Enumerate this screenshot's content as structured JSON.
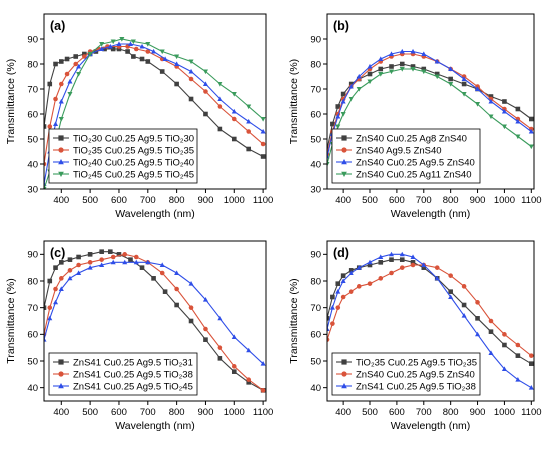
{
  "chart_data": [
    {
      "type": "line",
      "panel_label": "(a)",
      "xlabel": "Wavelength (nm)",
      "ylabel": "Transmittance (%)",
      "xlim": [
        340,
        1110
      ],
      "ylim": [
        30,
        100
      ],
      "xticks": [
        400,
        500,
        600,
        700,
        800,
        900,
        1000,
        1100
      ],
      "yticks": [
        30,
        40,
        50,
        60,
        70,
        80,
        90
      ],
      "legend_position": "bottom-left",
      "series": [
        {
          "name": "TiO₂30 Cu0.25 Ag9.5 TiO₂30",
          "color": "#404040",
          "marker": "square",
          "x": [
            340,
            360,
            380,
            400,
            420,
            450,
            480,
            500,
            520,
            550,
            580,
            600,
            630,
            650,
            680,
            700,
            750,
            800,
            850,
            900,
            950,
            1000,
            1050,
            1100
          ],
          "y": [
            55,
            72,
            80,
            81,
            82,
            83,
            84,
            84,
            85,
            86,
            86,
            86,
            85,
            83,
            82,
            81,
            77,
            72,
            66,
            60,
            54,
            50,
            46,
            43
          ]
        },
        {
          "name": "TiO₂35 Cu0.25 Ag9.5 TiO₂35",
          "color": "#d9533a",
          "marker": "circle",
          "x": [
            340,
            360,
            380,
            400,
            420,
            450,
            480,
            500,
            530,
            560,
            600,
            630,
            660,
            700,
            750,
            800,
            850,
            900,
            950,
            1000,
            1050,
            1100
          ],
          "y": [
            40,
            55,
            66,
            72,
            76,
            80,
            83,
            85,
            86,
            87,
            87,
            87,
            86,
            85,
            82,
            79,
            74,
            69,
            63,
            58,
            53,
            48
          ]
        },
        {
          "name": "TiO₂40 Cu0.25 Ag9.5 TiO₂40",
          "color": "#2f4ee8",
          "marker": "triangle-up",
          "x": [
            340,
            360,
            380,
            400,
            430,
            460,
            500,
            540,
            570,
            600,
            640,
            680,
            720,
            760,
            800,
            850,
            900,
            950,
            1000,
            1050,
            1100
          ],
          "y": [
            32,
            45,
            56,
            65,
            73,
            79,
            84,
            86,
            87,
            88,
            88,
            87,
            85,
            82,
            80,
            77,
            72,
            66,
            61,
            57,
            53
          ]
        },
        {
          "name": "TiO₂45 Cu0.25 Ag9.5 TiO₂45",
          "color": "#3a9b5c",
          "marker": "triangle-down",
          "x": [
            340,
            360,
            380,
            400,
            430,
            460,
            500,
            540,
            580,
            610,
            650,
            700,
            750,
            800,
            850,
            900,
            950,
            1000,
            1050,
            1100
          ],
          "y": [
            30,
            37,
            48,
            58,
            68,
            76,
            84,
            88,
            89,
            90,
            89,
            88,
            85,
            83,
            81,
            77,
            72,
            68,
            63,
            58
          ]
        }
      ]
    },
    {
      "type": "line",
      "panel_label": "(b)",
      "xlabel": "Wavelength (nm)",
      "ylabel": "Transmittance (%)",
      "xlim": [
        340,
        1110
      ],
      "ylim": [
        30,
        100
      ],
      "xticks": [
        400,
        500,
        600,
        700,
        800,
        900,
        1000,
        1100
      ],
      "yticks": [
        30,
        40,
        50,
        60,
        70,
        80,
        90
      ],
      "legend_position": "bottom-left",
      "series": [
        {
          "name": "ZnS40 Cu0.25 Ag8 ZnS40",
          "color": "#404040",
          "marker": "square",
          "x": [
            340,
            360,
            380,
            400,
            430,
            460,
            500,
            540,
            580,
            620,
            660,
            700,
            750,
            800,
            850,
            900,
            950,
            1000,
            1050,
            1100
          ],
          "y": [
            46,
            56,
            63,
            68,
            72,
            74,
            76,
            78,
            79,
            80,
            79,
            78,
            76,
            74,
            72,
            70,
            67,
            65,
            62,
            58
          ]
        },
        {
          "name": "ZnS40 Ag9.5 ZnS40",
          "color": "#d9533a",
          "marker": "circle",
          "x": [
            340,
            360,
            380,
            400,
            430,
            460,
            500,
            540,
            580,
            620,
            660,
            700,
            750,
            800,
            850,
            900,
            950,
            1000,
            1050,
            1100
          ],
          "y": [
            44,
            53,
            60,
            66,
            71,
            74,
            78,
            81,
            83,
            84,
            84,
            83,
            81,
            78,
            75,
            71,
            66,
            62,
            58,
            54
          ]
        },
        {
          "name": "ZnS40 Cu0.25 Ag9.5 ZnS40",
          "color": "#2f4ee8",
          "marker": "triangle-up",
          "x": [
            340,
            360,
            380,
            400,
            430,
            460,
            500,
            540,
            580,
            620,
            660,
            700,
            750,
            800,
            850,
            900,
            950,
            1000,
            1050,
            1100
          ],
          "y": [
            43,
            52,
            59,
            65,
            71,
            75,
            79,
            82,
            84,
            85,
            85,
            84,
            81,
            78,
            74,
            70,
            65,
            61,
            57,
            53
          ]
        },
        {
          "name": "ZnS40 Cu0.25 Ag11 ZnS40",
          "color": "#3a9b5c",
          "marker": "triangle-down",
          "x": [
            340,
            360,
            380,
            400,
            430,
            460,
            500,
            540,
            580,
            620,
            660,
            700,
            750,
            800,
            850,
            900,
            950,
            1000,
            1050,
            1100
          ],
          "y": [
            40,
            48,
            55,
            60,
            66,
            70,
            73,
            76,
            77,
            78,
            78,
            77,
            75,
            72,
            68,
            64,
            59,
            55,
            51,
            47
          ]
        }
      ]
    },
    {
      "type": "line",
      "panel_label": "(c)",
      "xlabel": "Wavelength (nm)",
      "ylabel": "Transmittance (%)",
      "xlim": [
        340,
        1110
      ],
      "ylim": [
        35,
        95
      ],
      "xticks": [
        400,
        500,
        600,
        700,
        800,
        900,
        1000,
        1100
      ],
      "yticks": [
        40,
        50,
        60,
        70,
        80,
        90
      ],
      "legend_position": "bottom-left",
      "series": [
        {
          "name": "ZnS41 Cu0.25 Ag9.5 TiO₂31",
          "color": "#404040",
          "marker": "square",
          "x": [
            340,
            360,
            380,
            400,
            430,
            460,
            500,
            540,
            570,
            600,
            640,
            680,
            720,
            760,
            800,
            850,
            900,
            950,
            1000,
            1050,
            1100
          ],
          "y": [
            70,
            80,
            85,
            87,
            88,
            89,
            90,
            91,
            91,
            90,
            88,
            85,
            81,
            76,
            71,
            65,
            58,
            51,
            46,
            42,
            39
          ]
        },
        {
          "name": "ZnS41 Cu0.25 Ag9.5 TiO₂38",
          "color": "#d9533a",
          "marker": "circle",
          "x": [
            340,
            360,
            380,
            400,
            430,
            460,
            500,
            540,
            580,
            620,
            660,
            700,
            750,
            800,
            850,
            900,
            950,
            1000,
            1050,
            1100
          ],
          "y": [
            60,
            70,
            77,
            81,
            84,
            86,
            87,
            88,
            89,
            90,
            89,
            87,
            83,
            77,
            70,
            62,
            55,
            48,
            43,
            39
          ]
        },
        {
          "name": "ZnS41 Cu0.25 Ag9.5 TiO₂45",
          "color": "#2f4ee8",
          "marker": "triangle-up",
          "x": [
            340,
            360,
            380,
            400,
            430,
            460,
            500,
            540,
            580,
            620,
            660,
            700,
            750,
            800,
            850,
            900,
            950,
            1000,
            1050,
            1100
          ],
          "y": [
            58,
            66,
            72,
            77,
            81,
            83,
            85,
            86,
            87,
            87,
            87,
            87,
            86,
            83,
            79,
            73,
            66,
            59,
            54,
            49
          ]
        }
      ]
    },
    {
      "type": "line",
      "panel_label": "(d)",
      "xlabel": "Wavelength (nm)",
      "ylabel": "Transmittance (%)",
      "xlim": [
        340,
        1110
      ],
      "ylim": [
        35,
        95
      ],
      "xticks": [
        400,
        500,
        600,
        700,
        800,
        900,
        1000,
        1100
      ],
      "yticks": [
        40,
        50,
        60,
        70,
        80,
        90
      ],
      "legend_position": "bottom-left",
      "series": [
        {
          "name": "TiO₂35 Cu0.25 Ag9.5 TiO₂35",
          "color": "#404040",
          "marker": "square",
          "x": [
            340,
            360,
            380,
            400,
            430,
            460,
            500,
            540,
            580,
            620,
            660,
            700,
            750,
            800,
            850,
            900,
            950,
            1000,
            1050,
            1100
          ],
          "y": [
            66,
            74,
            79,
            82,
            84,
            85,
            86,
            87,
            88,
            88,
            87,
            85,
            81,
            76,
            71,
            66,
            61,
            56,
            52,
            49
          ]
        },
        {
          "name": "ZnS40 Cu0.25 Ag9.5 ZnS40",
          "color": "#d9533a",
          "marker": "circle",
          "x": [
            340,
            360,
            380,
            400,
            430,
            460,
            500,
            540,
            580,
            620,
            660,
            700,
            750,
            800,
            850,
            900,
            950,
            1000,
            1050,
            1100
          ],
          "y": [
            58,
            64,
            70,
            74,
            76,
            78,
            79,
            81,
            83,
            85,
            86,
            86,
            85,
            82,
            78,
            72,
            65,
            60,
            56,
            52
          ]
        },
        {
          "name": "ZnS41 Cu0.25 Ag9.5 TiO₂38",
          "color": "#2f4ee8",
          "marker": "triangle-up",
          "x": [
            340,
            360,
            380,
            400,
            430,
            460,
            500,
            540,
            580,
            620,
            660,
            700,
            750,
            800,
            850,
            900,
            950,
            1000,
            1050,
            1100
          ],
          "y": [
            62,
            70,
            76,
            80,
            83,
            85,
            87,
            89,
            90,
            90,
            89,
            86,
            81,
            74,
            67,
            60,
            53,
            47,
            43,
            40
          ]
        }
      ]
    }
  ]
}
